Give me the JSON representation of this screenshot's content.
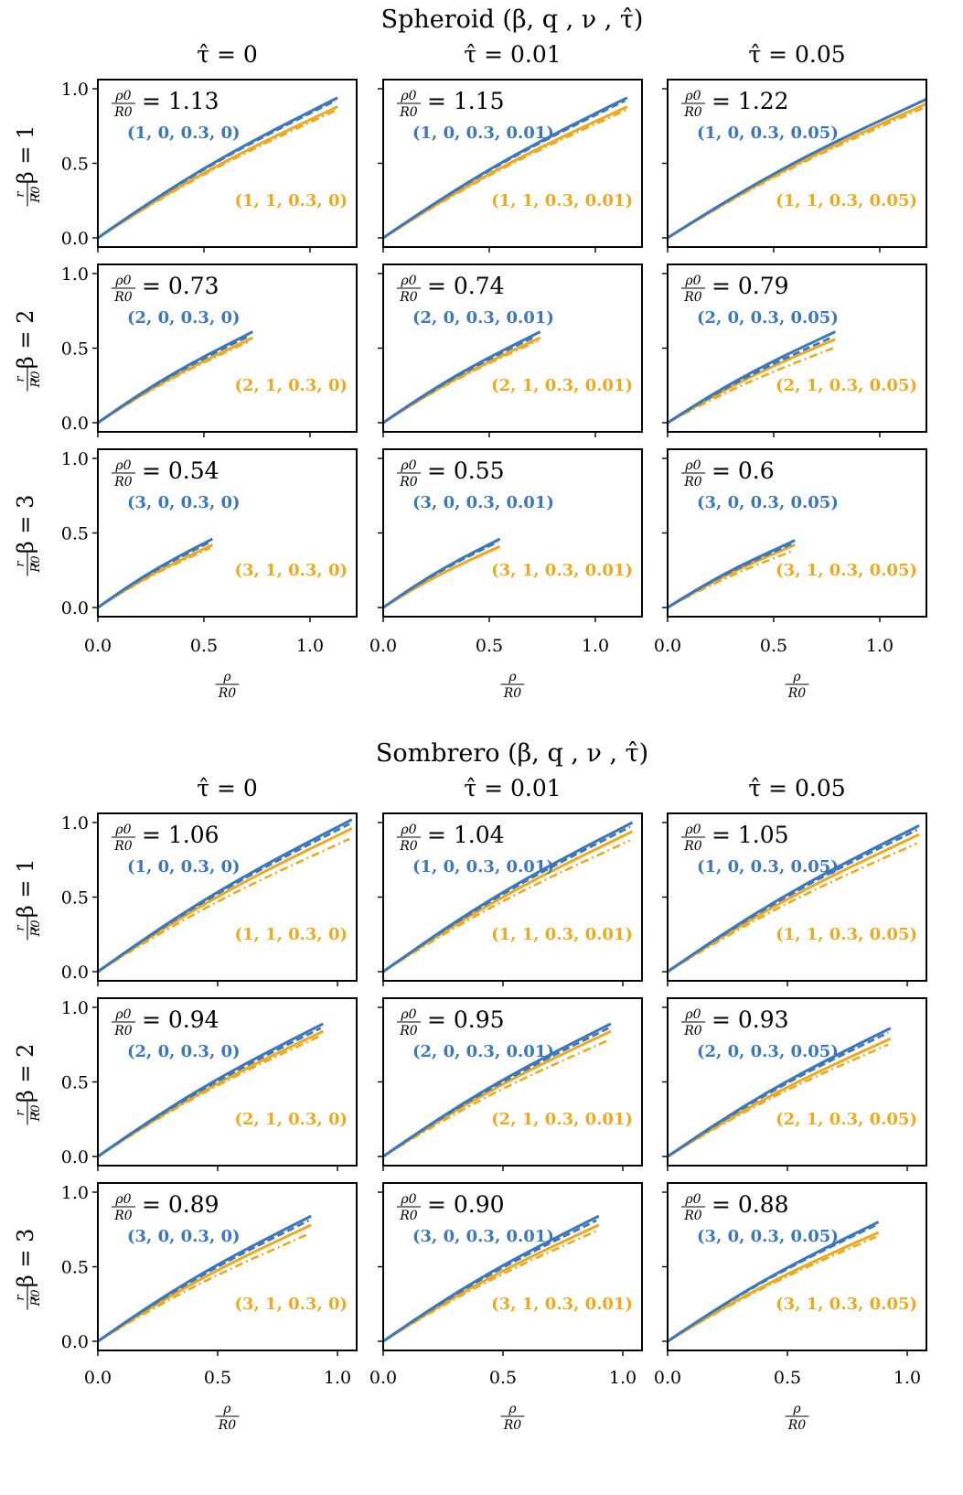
{
  "figure": {
    "colors": {
      "blue": "#3a77bd",
      "orange": "#f1a91c",
      "axis": "#000000"
    },
    "x_tick_labels": [
      "0.0",
      "0.5",
      "1.0"
    ],
    "y_tick_labels": [
      "0.0",
      "0.5",
      "1.0"
    ],
    "x_axis_label_num": "ρ",
    "x_axis_label_den": "R0",
    "row_label_prefix_num": "r",
    "row_label_prefix_den": "R0",
    "ratio_label_num": "ρ0",
    "ratio_label_den": "R0"
  },
  "chart_data": [
    {
      "type": "line",
      "title": "Spheroid (β, q , ν , τ̂)",
      "column_titles": [
        "τ̂ = 0",
        "τ̂ = 0.01",
        "τ̂ = 0.05"
      ],
      "row_titles": [
        "β = 1",
        "β = 2",
        "β = 3"
      ],
      "xlabel": "ρ/R0",
      "ylabel": "r/R0",
      "xlim": [
        0,
        1.22
      ],
      "ylim": [
        0,
        1.0
      ],
      "panels": [
        {
          "ratio": "1.13",
          "blue_label": "(1, 0, 0.3, 0)",
          "orange_label": "(1, 1, 0.3, 0)",
          "blue_end": [
            1.13,
            0.94
          ],
          "orange_end": [
            1.13,
            0.88
          ],
          "dash_end": [
            1.12,
            0.92
          ],
          "dashdot_end": [
            1.13,
            0.86
          ]
        },
        {
          "ratio": "1.15",
          "blue_label": "(1, 0, 0.3, 0.01)",
          "orange_label": "(1, 1, 0.3, 0.01)",
          "blue_end": [
            1.15,
            0.94
          ],
          "orange_end": [
            1.15,
            0.88
          ],
          "dash_end": [
            1.14,
            0.92
          ],
          "dashdot_end": [
            1.15,
            0.86
          ]
        },
        {
          "ratio": "1.22",
          "blue_label": "(1, 0, 0.3, 0.05)",
          "orange_label": "(1, 1, 0.3, 0.05)",
          "blue_end": [
            1.22,
            0.93
          ],
          "orange_end": [
            1.22,
            0.9
          ],
          "dash_end": [
            1.22,
            0.93
          ],
          "dashdot_end": [
            1.22,
            0.88
          ]
        },
        {
          "ratio": "0.73",
          "blue_label": "(2, 0, 0.3, 0)",
          "orange_label": "(2, 1, 0.3, 0)",
          "blue_end": [
            0.73,
            0.61
          ],
          "orange_end": [
            0.73,
            0.57
          ],
          "dash_end": [
            0.71,
            0.58
          ],
          "dashdot_end": [
            0.72,
            0.55
          ]
        },
        {
          "ratio": "0.74",
          "blue_label": "(2, 0, 0.3, 0.01)",
          "orange_label": "(2, 1, 0.3, 0.01)",
          "blue_end": [
            0.74,
            0.61
          ],
          "orange_end": [
            0.74,
            0.57
          ],
          "dash_end": [
            0.72,
            0.58
          ],
          "dashdot_end": [
            0.73,
            0.55
          ]
        },
        {
          "ratio": "0.79",
          "blue_label": "(2, 0, 0.3, 0.05)",
          "orange_label": "(2, 1, 0.3, 0.05)",
          "blue_end": [
            0.79,
            0.61
          ],
          "orange_end": [
            0.79,
            0.56
          ],
          "dash_end": [
            0.77,
            0.57
          ],
          "dashdot_end": [
            0.78,
            0.5
          ]
        },
        {
          "ratio": "0.54",
          "blue_label": "(3, 0, 0.3, 0)",
          "orange_label": "(3, 1, 0.3, 0)",
          "blue_end": [
            0.54,
            0.46
          ],
          "orange_end": [
            0.54,
            0.42
          ],
          "dash_end": [
            0.53,
            0.44
          ],
          "dashdot_end": [
            0.53,
            0.4
          ]
        },
        {
          "ratio": "0.55",
          "blue_label": "(3, 0, 0.3, 0.01)",
          "orange_label": "(3, 1, 0.3, 0.01)",
          "blue_end": [
            0.55,
            0.46
          ],
          "orange_end": [
            0.55,
            0.41
          ],
          "dash_end": [
            0.54,
            0.44
          ],
          "dashdot_end": [
            0.54,
            0.4
          ]
        },
        {
          "ratio": "0.6",
          "blue_label": "(3, 0, 0.3, 0.05)",
          "orange_label": "(3, 1, 0.3, 0.05)",
          "blue_end": [
            0.6,
            0.45
          ],
          "orange_end": [
            0.6,
            0.42
          ],
          "dash_end": [
            0.59,
            0.43
          ],
          "dashdot_end": [
            0.59,
            0.38
          ]
        }
      ]
    },
    {
      "type": "line",
      "title": "Sombrero (β, q , ν , τ̂)",
      "column_titles": [
        "τ̂ = 0",
        "τ̂ = 0.01",
        "τ̂ = 0.05"
      ],
      "row_titles": [
        "β = 1",
        "β = 2",
        "β = 3"
      ],
      "xlabel": "ρ/R0",
      "ylabel": "r/R0",
      "xlim": [
        0,
        1.08
      ],
      "ylim": [
        0,
        1.0
      ],
      "panels": [
        {
          "ratio": "1.06",
          "blue_label": "(1, 0, 0.3, 0)",
          "orange_label": "(1, 1, 0.3, 0)",
          "blue_end": [
            1.06,
            1.02
          ],
          "orange_end": [
            1.06,
            0.96
          ],
          "dash_end": [
            1.05,
            0.99
          ],
          "dashdot_end": [
            1.05,
            0.89
          ]
        },
        {
          "ratio": "1.04",
          "blue_label": "(1, 0, 0.3, 0.01)",
          "orange_label": "(1, 1, 0.3, 0.01)",
          "blue_end": [
            1.04,
            1.0
          ],
          "orange_end": [
            1.04,
            0.94
          ],
          "dash_end": [
            1.03,
            0.97
          ],
          "dashdot_end": [
            1.03,
            0.88
          ]
        },
        {
          "ratio": "1.05",
          "blue_label": "(1, 0, 0.3, 0.05)",
          "orange_label": "(1, 1, 0.3, 0.05)",
          "blue_end": [
            1.05,
            0.98
          ],
          "orange_end": [
            1.05,
            0.92
          ],
          "dash_end": [
            1.04,
            0.95
          ],
          "dashdot_end": [
            1.04,
            0.86
          ]
        },
        {
          "ratio": "0.94",
          "blue_label": "(2, 0, 0.3, 0)",
          "orange_label": "(2, 1, 0.3, 0)",
          "blue_end": [
            0.94,
            0.89
          ],
          "orange_end": [
            0.94,
            0.84
          ],
          "dash_end": [
            0.93,
            0.86
          ],
          "dashdot_end": [
            0.93,
            0.81
          ]
        },
        {
          "ratio": "0.95",
          "blue_label": "(2, 0, 0.3, 0.01)",
          "orange_label": "(2, 1, 0.3, 0.01)",
          "blue_end": [
            0.95,
            0.89
          ],
          "orange_end": [
            0.95,
            0.84
          ],
          "dash_end": [
            0.94,
            0.86
          ],
          "dashdot_end": [
            0.94,
            0.78
          ]
        },
        {
          "ratio": "0.93",
          "blue_label": "(2, 0, 0.3, 0.05)",
          "orange_label": "(2, 1, 0.3, 0.05)",
          "blue_end": [
            0.93,
            0.86
          ],
          "orange_end": [
            0.93,
            0.79
          ],
          "dash_end": [
            0.92,
            0.83
          ],
          "dashdot_end": [
            0.92,
            0.75
          ]
        },
        {
          "ratio": "0.89",
          "blue_label": "(3, 0, 0.3, 0)",
          "orange_label": "(3, 1, 0.3, 0)",
          "blue_end": [
            0.89,
            0.84
          ],
          "orange_end": [
            0.89,
            0.78
          ],
          "dash_end": [
            0.88,
            0.81
          ],
          "dashdot_end": [
            0.88,
            0.72
          ]
        },
        {
          "ratio": "0.90",
          "blue_label": "(3, 0, 0.3, 0.01)",
          "orange_label": "(3, 1, 0.3, 0.01)",
          "blue_end": [
            0.9,
            0.84
          ],
          "orange_end": [
            0.9,
            0.78
          ],
          "dash_end": [
            0.89,
            0.81
          ],
          "dashdot_end": [
            0.89,
            0.74
          ]
        },
        {
          "ratio": "0.88",
          "blue_label": "(3, 0, 0.3, 0.05)",
          "orange_label": "(3, 1, 0.3, 0.05)",
          "blue_end": [
            0.88,
            0.8
          ],
          "orange_end": [
            0.88,
            0.73
          ],
          "dash_end": [
            0.87,
            0.78
          ],
          "dashdot_end": [
            0.87,
            0.7
          ]
        }
      ]
    }
  ]
}
